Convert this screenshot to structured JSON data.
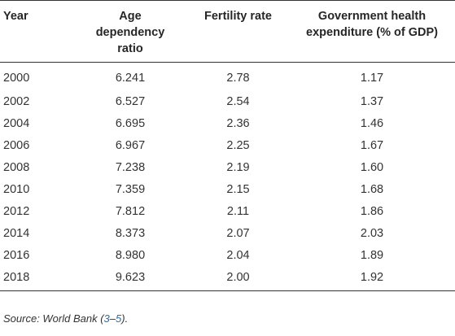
{
  "table": {
    "headers": {
      "year": "Year",
      "age_line1": "Age",
      "age_line2": "dependency",
      "age_line3": "ratio",
      "fertility": "Fertility rate",
      "gov_line1": "Government health",
      "gov_line2": "expenditure (% of GDP)"
    },
    "rows": [
      {
        "year": "2000",
        "age_dependency": "6.241",
        "fertility": "2.78",
        "gov_health": "1.17"
      },
      {
        "year": "2002",
        "age_dependency": "6.527",
        "fertility": "2.54",
        "gov_health": "1.37"
      },
      {
        "year": "2004",
        "age_dependency": "6.695",
        "fertility": "2.36",
        "gov_health": "1.46"
      },
      {
        "year": "2006",
        "age_dependency": "6.967",
        "fertility": "2.25",
        "gov_health": "1.67"
      },
      {
        "year": "2008",
        "age_dependency": "7.238",
        "fertility": "2.19",
        "gov_health": "1.60"
      },
      {
        "year": "2010",
        "age_dependency": "7.359",
        "fertility": "2.15",
        "gov_health": "1.68"
      },
      {
        "year": "2012",
        "age_dependency": "7.812",
        "fertility": "2.11",
        "gov_health": "1.86"
      },
      {
        "year": "2014",
        "age_dependency": "8.373",
        "fertility": "2.07",
        "gov_health": "2.03"
      },
      {
        "year": "2016",
        "age_dependency": "8.980",
        "fertility": "2.04",
        "gov_health": "1.89"
      },
      {
        "year": "2018",
        "age_dependency": "9.623",
        "fertility": "2.00",
        "gov_health": "1.92"
      }
    ]
  },
  "source": {
    "prefix": "Source: World Bank (",
    "ref": "3",
    "dash": "–",
    "ref2": "5",
    "suffix": ")."
  }
}
